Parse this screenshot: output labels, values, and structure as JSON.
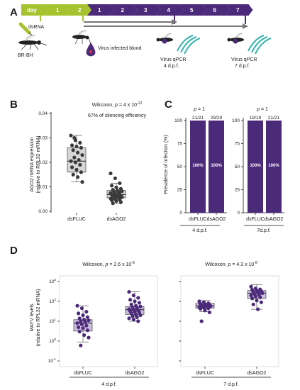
{
  "panel_labels": {
    "a": "A",
    "b": "B",
    "c": "C",
    "d": "D"
  },
  "panel_a": {
    "day_word": "day",
    "green_days": [
      "1",
      "2"
    ],
    "purple_days": [
      "1",
      "2",
      "3",
      "4",
      "5",
      "6",
      "7"
    ],
    "dsrna_label": "dsRNA",
    "strain_label": "BR-BH",
    "blood_label": "Virus infected blood",
    "qpcr_label": "Virus qPCR",
    "dpf4": "4 d.p.f.",
    "dpf7": "7 d.p.f.",
    "colors": {
      "green": "#a6c22e",
      "purple": "#4b2a7a"
    }
  },
  "panel_b": {
    "ylabel_line1": "AGO2 mRNA expression",
    "ylabel_line2": "(relative to RPL32 mRNA)",
    "stat_prefix": "Wilcoxon, ",
    "stat_p": "p",
    "stat_value": " = 4 x 10",
    "stat_exp": "-12",
    "efficiency": "67% of silencing efficiency",
    "xcats": [
      "dsFLUC",
      "dsAGO2"
    ]
  },
  "panel_c": {
    "ylabel": "Prevalence of infection (%)",
    "p_label": "p",
    "p_value": " = 1",
    "group1": "4 d.p.f.",
    "group2": "7d.p.f.",
    "xcats": [
      "dsFLUC",
      "dsAGO2"
    ]
  },
  "panel_d": {
    "ylabel_line1": "MAYV levels",
    "ylabel_line2": "(relative to RPL32 mRNA)",
    "stat_prefix": "Wilcoxon, ",
    "stat_p": "p",
    "stat1_value": " = 2.6 x 10",
    "stat1_exp": "-8",
    "stat2_value": " = 4.3 x 10",
    "stat2_exp": "-8",
    "xcats": [
      "dsFLUC",
      "dsAGO2"
    ],
    "group1": "4 d.p.f.",
    "group2": "7 d.p.f."
  },
  "chart_data": [
    {
      "type": "box",
      "panel": "B",
      "categories": [
        "dsFLUC",
        "dsAGO2"
      ],
      "ylabel": "AGO2 mRNA expression (relative to RPL32 mRNA)",
      "ylim": [
        0,
        0.04
      ],
      "yticks": [
        "0.00",
        "0.01",
        "0.02",
        "0.03",
        "0.04"
      ],
      "boxes": [
        {
          "name": "dsFLUC",
          "min": 0.012,
          "q1": 0.016,
          "median": 0.0205,
          "q3": 0.026,
          "max": 0.031,
          "points": [
            0.031,
            0.029,
            0.028,
            0.027,
            0.0265,
            0.026,
            0.025,
            0.024,
            0.023,
            0.022,
            0.021,
            0.0205,
            0.02,
            0.019,
            0.018,
            0.017,
            0.016,
            0.015,
            0.014,
            0.012,
            0.03
          ]
        },
        {
          "name": "dsAGO2",
          "min": 0.003,
          "q1": 0.0055,
          "median": 0.0068,
          "q3": 0.0085,
          "max": 0.0115,
          "points": [
            0.0155,
            0.0135,
            0.0115,
            0.0105,
            0.0098,
            0.0092,
            0.0088,
            0.0085,
            0.0082,
            0.008,
            0.0078,
            0.0075,
            0.0072,
            0.007,
            0.0068,
            0.0066,
            0.0064,
            0.0062,
            0.006,
            0.0058,
            0.0056,
            0.0055,
            0.0052,
            0.005,
            0.0048,
            0.0045,
            0.0042,
            0.0038,
            0.0033
          ]
        }
      ]
    },
    {
      "type": "bar",
      "panel": "C",
      "ylabel": "Prevalence of infection (%)",
      "ylim": [
        0,
        100
      ],
      "yticks": [
        "0",
        "25",
        "50",
        "75",
        "100"
      ],
      "groups": [
        {
          "name": "4 d.p.f.",
          "bars": [
            {
              "category": "dsFLUC",
              "value": 100,
              "count": "21/21",
              "label": "100%"
            },
            {
              "category": "dsAGO2",
              "value": 100,
              "count": "29/29",
              "label": "100%"
            }
          ]
        },
        {
          "name": "7d.p.f.",
          "bars": [
            {
              "category": "dsFLUC",
              "value": 100,
              "count": "19/19",
              "label": "100%"
            },
            {
              "category": "dsAGO2",
              "value": 100,
              "count": "21/21",
              "label": "100%"
            }
          ]
        }
      ]
    },
    {
      "type": "box",
      "panel": "D",
      "scale": "log",
      "ylabel": "MAYV levels (relative to RPL32 mRNA)",
      "ylim": [
        0.1,
        1000
      ],
      "ytick_exponents": [
        "3",
        "2",
        "1",
        "0",
        "-1"
      ],
      "groups": [
        {
          "name": "4 d.p.f.",
          "boxes": [
            {
              "name": "dsFLUC",
              "min": 0.9,
              "q1": 3.2,
              "median": 8,
              "q3": 12,
              "max": 60,
              "points": [
                60,
                45,
                30,
                25,
                20,
                16,
                14,
                12,
                11,
                10,
                9,
                8,
                7,
                6,
                5,
                4.5,
                3.5,
                3,
                2,
                1.5,
                0.6
              ]
            },
            {
              "name": "dsAGO2",
              "min": 10,
              "q1": 22,
              "median": 38,
              "q3": 55,
              "max": 300,
              "points": [
                300,
                200,
                150,
                120,
                100,
                85,
                70,
                60,
                55,
                50,
                45,
                40,
                38,
                35,
                32,
                30,
                28,
                25,
                22,
                20,
                18,
                16,
                14,
                12,
                10
              ]
            }
          ]
        },
        {
          "name": "7 d.p.f.",
          "boxes": [
            {
              "name": "dsFLUC",
              "min": 30,
              "q1": 45,
              "median": 60,
              "q3": 80,
              "max": 110,
              "points": [
                100,
                90,
                80,
                75,
                70,
                65,
                62,
                60,
                58,
                55,
                52,
                50,
                48,
                45,
                42,
                35,
                28,
                10
              ]
            },
            {
              "name": "dsAGO2",
              "min": 40,
              "q1": 140,
              "median": 260,
              "q3": 350,
              "max": 700,
              "points": [
                550,
                450,
                400,
                380,
                350,
                320,
                300,
                280,
                260,
                240,
                220,
                200,
                180,
                160,
                140,
                110,
                90,
                70,
                40
              ]
            }
          ]
        }
      ]
    }
  ]
}
